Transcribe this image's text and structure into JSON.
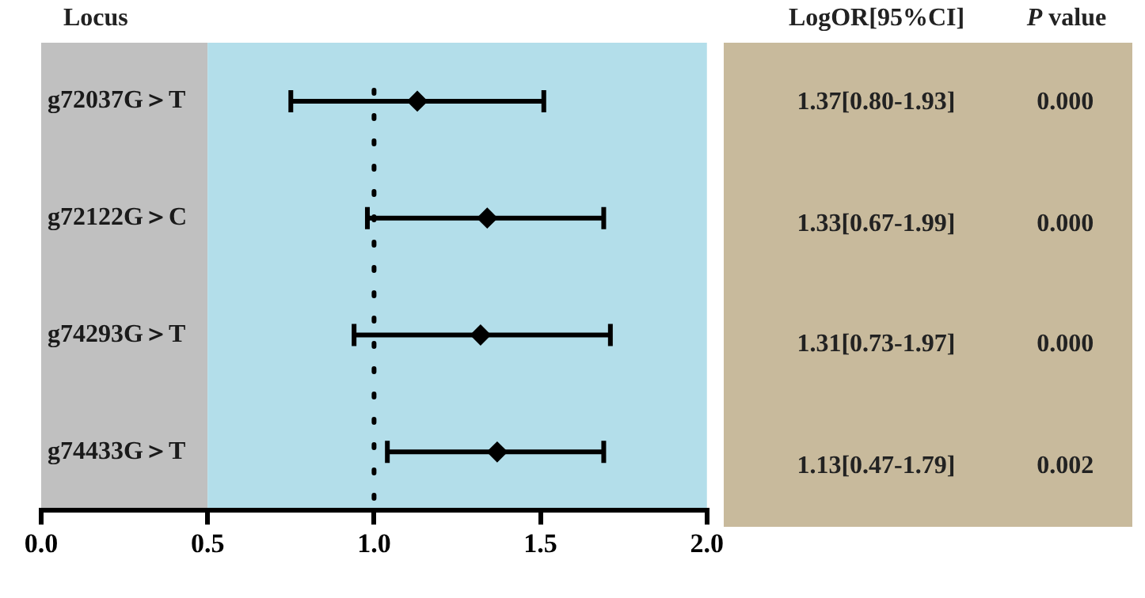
{
  "chart_data": {
    "type": "scatter",
    "orientation": "horizontal",
    "ylabel": "Locus",
    "categories": [
      "g72037G＞T",
      "g72122G＞C",
      "g74293G＞T",
      "g74433G＞T"
    ],
    "values": [
      1.13,
      1.34,
      1.32,
      1.37
    ],
    "errors": [
      [
        0.75,
        1.51
      ],
      [
        0.98,
        1.69
      ],
      [
        0.94,
        1.71
      ],
      [
        1.04,
        1.69
      ]
    ],
    "color": "#000000",
    "marker": "diamond",
    "xlim": [
      0,
      2.0
    ],
    "xticks": [
      {
        "value": 0,
        "label": "0.0"
      },
      0.5,
      {
        "value": 1,
        "label": "1.0"
      },
      1.5,
      {
        "value": 2,
        "label": "2.0"
      }
    ],
    "grid": false,
    "legend": false,
    "bands": [
      {
        "axis": "x",
        "from": 0,
        "to": 0.5,
        "color": "#c0c0c0"
      },
      {
        "axis": "x",
        "from": 0.5,
        "to": 2.0,
        "color": "#b3deea"
      }
    ],
    "ref_lines": [
      {
        "axis": "x",
        "value": 1.0,
        "line_style": "dotted",
        "color": "#000000"
      }
    ],
    "annotations": [
      "LogOR[95%CI]",
      "P value",
      "1.37[0.80-1.93]",
      "0.000",
      "1.33[0.67-1.99]",
      "0.000",
      "1.31[0.73-1.97]",
      "0.000",
      "1.13[0.47-1.79]",
      "0.002"
    ]
  }
}
